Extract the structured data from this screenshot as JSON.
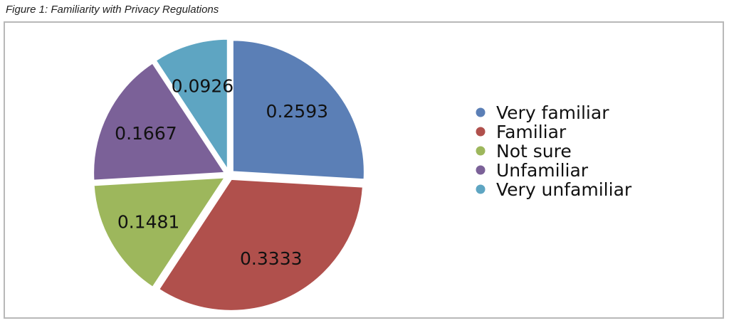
{
  "caption": "Figure 1: Familiarity with Privacy Regulations",
  "chart_data": {
    "type": "pie",
    "title": "",
    "legend_position": "right",
    "slices": [
      {
        "name": "Very familiar",
        "value": 0.2593,
        "label": "0.2593",
        "color": "#5b7fb6"
      },
      {
        "name": "Familiar",
        "value": 0.3333,
        "label": "0.3333",
        "color": "#b0504c"
      },
      {
        "name": "Not sure",
        "value": 0.1481,
        "label": "0.1481",
        "color": "#9db75c"
      },
      {
        "name": "Unfamiliar",
        "value": 0.1667,
        "label": "0.1667",
        "color": "#7b6198"
      },
      {
        "name": "Very unfamiliar",
        "value": 0.0926,
        "label": "0.0926",
        "color": "#5ea5c2"
      }
    ]
  }
}
